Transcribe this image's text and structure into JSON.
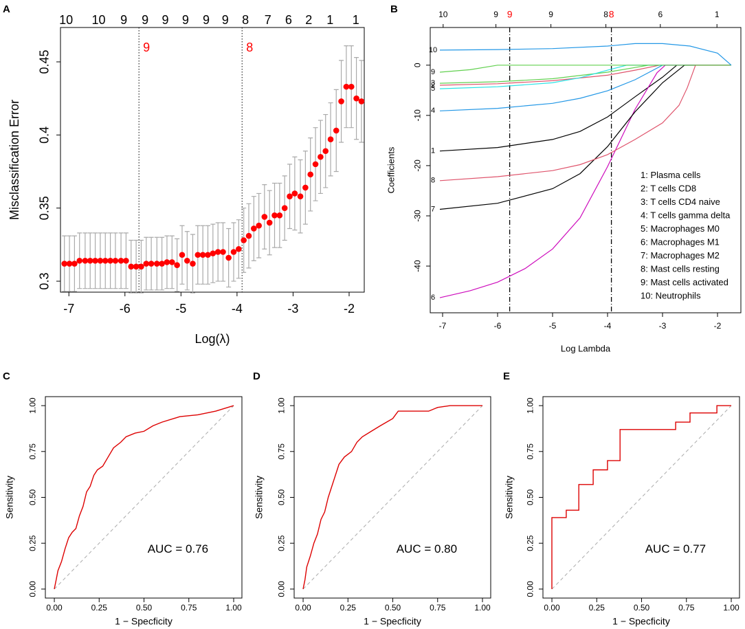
{
  "chart_data": [
    {
      "type": "scatter",
      "panel": "A",
      "xlabel": "Log(λ)",
      "ylabel": "Misclassification Error",
      "color": "#ff0000",
      "error_color": "#aaaaaa",
      "xlim": [
        -7.15,
        -1.73
      ],
      "ylim": [
        0.2925,
        0.4735
      ],
      "xticks": [
        -7,
        -6,
        -5,
        -4,
        -3,
        -2
      ],
      "yticks": [
        0.3,
        0.35,
        0.4,
        0.45
      ],
      "top_ticks": [
        {
          "value": -7.05,
          "label": "10"
        },
        {
          "value": -6.47,
          "label": "10"
        },
        {
          "value": -6.02,
          "label": "9"
        },
        {
          "value": -5.64,
          "label": "9"
        },
        {
          "value": -5.28,
          "label": "9"
        },
        {
          "value": -4.92,
          "label": "9"
        },
        {
          "value": -4.55,
          "label": "9"
        },
        {
          "value": -4.21,
          "label": "9"
        },
        {
          "value": -3.85,
          "label": "8"
        },
        {
          "value": -3.45,
          "label": "7"
        },
        {
          "value": -3.08,
          "label": "6"
        },
        {
          "value": -2.72,
          "label": "2"
        },
        {
          "value": -2.34,
          "label": "1"
        },
        {
          "value": -1.88,
          "label": "1"
        }
      ],
      "vlines": [
        {
          "x": -5.75,
          "label": "9"
        },
        {
          "x": -3.91,
          "label": "8"
        }
      ],
      "x": [
        -7.08,
        -6.99,
        -6.9,
        -6.81,
        -6.71,
        -6.62,
        -6.53,
        -6.44,
        -6.35,
        -6.26,
        -6.17,
        -6.07,
        -5.98,
        -5.89,
        -5.8,
        -5.71,
        -5.62,
        -5.53,
        -5.43,
        -5.34,
        -5.25,
        -5.16,
        -5.07,
        -4.98,
        -4.89,
        -4.79,
        -4.7,
        -4.61,
        -4.52,
        -4.43,
        -4.34,
        -4.25,
        -4.15,
        -4.06,
        -3.97,
        -3.88,
        -3.79,
        -3.7,
        -3.61,
        -3.51,
        -3.42,
        -3.33,
        -3.24,
        -3.15,
        -3.06,
        -2.97,
        -2.87,
        -2.78,
        -2.69,
        -2.6,
        -2.51,
        -2.42,
        -2.33,
        -2.23,
        -2.14,
        -2.05,
        -1.96,
        -1.87,
        -1.78
      ],
      "values": [
        0.312,
        0.312,
        0.312,
        0.314,
        0.314,
        0.314,
        0.314,
        0.314,
        0.314,
        0.314,
        0.314,
        0.314,
        0.314,
        0.31,
        0.31,
        0.31,
        0.312,
        0.312,
        0.312,
        0.312,
        0.313,
        0.313,
        0.311,
        0.318,
        0.314,
        0.312,
        0.318,
        0.318,
        0.318,
        0.319,
        0.32,
        0.32,
        0.316,
        0.32,
        0.322,
        0.328,
        0.331,
        0.336,
        0.338,
        0.344,
        0.34,
        0.345,
        0.345,
        0.35,
        0.358,
        0.36,
        0.358,
        0.364,
        0.373,
        0.38,
        0.385,
        0.389,
        0.397,
        0.403,
        0.423,
        0.433,
        0.433,
        0.425,
        0.423
      ],
      "errors": [
        0.019,
        0.019,
        0.019,
        0.019,
        0.019,
        0.019,
        0.019,
        0.019,
        0.019,
        0.019,
        0.019,
        0.019,
        0.019,
        0.018,
        0.018,
        0.018,
        0.018,
        0.018,
        0.018,
        0.018,
        0.018,
        0.018,
        0.018,
        0.02,
        0.02,
        0.02,
        0.02,
        0.02,
        0.02,
        0.02,
        0.02,
        0.02,
        0.02,
        0.02,
        0.02,
        0.022,
        0.022,
        0.022,
        0.022,
        0.022,
        0.022,
        0.022,
        0.022,
        0.022,
        0.022,
        0.025,
        0.025,
        0.025,
        0.025,
        0.025,
        0.025,
        0.025,
        0.025,
        0.028,
        0.028,
        0.028,
        0.028,
        0.028,
        0.028
      ]
    },
    {
      "type": "line",
      "panel": "B",
      "xlabel": "Log Lambda",
      "ylabel": "Coefficients",
      "xlim": [
        -7.225,
        -1.575
      ],
      "ylim": [
        -49.3,
        7.5
      ],
      "xticks": [
        -7,
        -6,
        -5,
        -4,
        -3,
        -2
      ],
      "yticks": [
        -40,
        -30,
        -20,
        -10,
        0
      ],
      "top_ticks": [
        {
          "value": -6.99,
          "label": "10"
        },
        {
          "value": -6.03,
          "label": "9"
        },
        {
          "value": -5.03,
          "label": "9"
        },
        {
          "value": -4.03,
          "label": "8"
        },
        {
          "value": -3.04,
          "label": "6"
        },
        {
          "value": -2.01,
          "label": "1"
        }
      ],
      "vlines": [
        {
          "x": -5.78,
          "label": "9"
        },
        {
          "x": -3.93,
          "label": "8"
        }
      ],
      "legend_position": "bottom-right",
      "series": [
        {
          "id": 1,
          "name": "1: Plasma cells",
          "color": "#000000",
          "x": [
            -7.05,
            -6,
            -5,
            -4.5,
            -4,
            -3.5,
            -3,
            -2.74,
            -1.75
          ],
          "y": [
            -17.1,
            -16.4,
            -14.8,
            -13.2,
            -10.3,
            -6.3,
            -2.4,
            0,
            0
          ]
        },
        {
          "id": 2,
          "name": "2: T cells CD8",
          "color": "#df536b",
          "x": [
            -7.05,
            -6,
            -5,
            -4,
            -3.5,
            -3.05,
            -1.75
          ],
          "y": [
            -4.0,
            -3.7,
            -3.1,
            -2.0,
            -1.0,
            0,
            0
          ]
        },
        {
          "id": 3,
          "name": "3: T cells CD4 naive",
          "color": "#61d04f",
          "x": [
            -7.05,
            -6,
            -5,
            -4,
            -3.25,
            -1.75
          ],
          "y": [
            -3.6,
            -3.3,
            -2.7,
            -1.4,
            0,
            0
          ]
        },
        {
          "id": 4,
          "name": "4: T cells gamma delta",
          "color": "#2297e6",
          "x": [
            -7.05,
            -6,
            -5,
            -4.5,
            -4,
            -3.5,
            -3.0,
            -1.75
          ],
          "y": [
            -9.1,
            -8.6,
            -7.6,
            -6.6,
            -5.1,
            -2.9,
            0,
            0
          ]
        },
        {
          "id": 5,
          "name": "5: Macrophages M0",
          "color": "#28e2e5",
          "x": [
            -7.05,
            -6,
            -5,
            -4.5,
            -4,
            -3.65,
            -1.75
          ],
          "y": [
            -4.7,
            -4.3,
            -3.5,
            -2.5,
            -1.0,
            0,
            0
          ]
        },
        {
          "id": 6,
          "name": "6: Macrophages M1",
          "color": "#cd0bbc",
          "x": [
            -7.05,
            -6.5,
            -6,
            -5.5,
            -5,
            -4.5,
            -4,
            -3.5,
            -3.1,
            -2.95,
            -1.75
          ],
          "y": [
            -46.3,
            -44.9,
            -43.2,
            -40.5,
            -36.6,
            -30.4,
            -20.2,
            -8.8,
            -1.5,
            0,
            0
          ]
        },
        {
          "id": 7,
          "name": "7: Macrophages M2",
          "color": "#000000",
          "x": [
            -7.05,
            -6,
            -5,
            -4.5,
            -4,
            -3.5,
            -3,
            -2.6,
            -1.75
          ],
          "y": [
            -28.7,
            -27.5,
            -24.6,
            -21.6,
            -16.2,
            -9.3,
            -3.5,
            0,
            0
          ]
        },
        {
          "id": 8,
          "name": "8: Mast cells resting",
          "color": "#df536b",
          "x": [
            -7.05,
            -6,
            -5,
            -4.5,
            -4,
            -3.5,
            -3,
            -2.7,
            -2.55,
            -2.4,
            -1.75
          ],
          "y": [
            -23.0,
            -22.2,
            -21.0,
            -19.8,
            -17.8,
            -14.8,
            -11.5,
            -8,
            -4.5,
            0,
            0
          ]
        },
        {
          "id": 9,
          "name": "9: Mast cells activated",
          "color": "#61d04f",
          "x": [
            -7.05,
            -6.5,
            -6.0,
            -1.75
          ],
          "y": [
            -1.4,
            -0.9,
            0,
            0
          ]
        },
        {
          "id": 10,
          "name": "10: Neutrophils",
          "color": "#2297e6",
          "x": [
            -7.05,
            -6,
            -5,
            -4,
            -3.5,
            -3,
            -2.5,
            -2,
            -1.75
          ],
          "y": [
            3.0,
            3.1,
            3.3,
            3.8,
            4.3,
            4.3,
            3.8,
            2.4,
            0
          ]
        }
      ]
    },
    {
      "type": "roc",
      "panel": "C",
      "xlabel": "1 − Specficity",
      "ylabel": "Sensitivity",
      "annotation": "AUC = 0.76",
      "color": "#dd0000",
      "reference_line": true,
      "xlim": [
        -0.05,
        1.046
      ],
      "ylim": [
        -0.049,
        1.049
      ],
      "xticks": [
        {
          "value": 0,
          "label": "0.00"
        },
        {
          "value": 0.25,
          "label": "0.25"
        },
        {
          "value": 0.5,
          "label": "0.50"
        },
        {
          "value": 0.75,
          "label": "0.75"
        },
        {
          "value": 1,
          "label": "1.00"
        }
      ],
      "yticks": [
        {
          "value": 0,
          "label": "0.00"
        },
        {
          "value": 0.25,
          "label": "0.25"
        },
        {
          "value": 0.5,
          "label": "0.50"
        },
        {
          "value": 0.75,
          "label": "0.75"
        },
        {
          "value": 1,
          "label": "1.00"
        }
      ],
      "x": [
        0,
        0.01,
        0.02,
        0.04,
        0.06,
        0.08,
        0.1,
        0.12,
        0.14,
        0.16,
        0.18,
        0.2,
        0.22,
        0.24,
        0.27,
        0.3,
        0.33,
        0.37,
        0.4,
        0.45,
        0.5,
        0.55,
        0.6,
        0.7,
        0.8,
        0.9,
        1
      ],
      "y": [
        0,
        0.05,
        0.1,
        0.15,
        0.22,
        0.28,
        0.31,
        0.33,
        0.4,
        0.45,
        0.53,
        0.56,
        0.62,
        0.65,
        0.67,
        0.72,
        0.77,
        0.8,
        0.83,
        0.85,
        0.86,
        0.89,
        0.91,
        0.94,
        0.95,
        0.97,
        1
      ]
    },
    {
      "type": "roc",
      "panel": "D",
      "xlabel": "1 − Specficity",
      "ylabel": "Sensitivity",
      "annotation": "AUC = 0.80",
      "color": "#dd0000",
      "reference_line": true,
      "xlim": [
        -0.05,
        1.046
      ],
      "ylim": [
        -0.049,
        1.049
      ],
      "xticks": [
        {
          "value": 0,
          "label": "0.00"
        },
        {
          "value": 0.25,
          "label": "0.25"
        },
        {
          "value": 0.5,
          "label": "0.50"
        },
        {
          "value": 0.75,
          "label": "0.75"
        },
        {
          "value": 1,
          "label": "1.00"
        }
      ],
      "yticks": [
        {
          "value": 0,
          "label": "0.00"
        },
        {
          "value": 0.25,
          "label": "0.25"
        },
        {
          "value": 0.5,
          "label": "0.50"
        },
        {
          "value": 0.75,
          "label": "0.75"
        },
        {
          "value": 1,
          "label": "1.00"
        }
      ],
      "x": [
        0,
        0.01,
        0.02,
        0.04,
        0.06,
        0.08,
        0.1,
        0.12,
        0.14,
        0.16,
        0.18,
        0.2,
        0.23,
        0.27,
        0.3,
        0.33,
        0.38,
        0.43,
        0.5,
        0.53,
        0.7,
        0.75,
        0.82,
        1
      ],
      "y": [
        0,
        0.05,
        0.12,
        0.18,
        0.25,
        0.3,
        0.38,
        0.42,
        0.5,
        0.56,
        0.62,
        0.68,
        0.72,
        0.75,
        0.8,
        0.83,
        0.86,
        0.89,
        0.93,
        0.97,
        0.97,
        0.99,
        1,
        1
      ]
    },
    {
      "type": "roc",
      "panel": "E",
      "xlabel": "1 − Specficity",
      "ylabel": "Sensitivity",
      "annotation": "AUC = 0.77",
      "color": "#dd0000",
      "reference_line": true,
      "xlim": [
        -0.05,
        1.046
      ],
      "ylim": [
        -0.049,
        1.049
      ],
      "xticks": [
        {
          "value": 0,
          "label": "0.00"
        },
        {
          "value": 0.25,
          "label": "0.25"
        },
        {
          "value": 0.5,
          "label": "0.50"
        },
        {
          "value": 0.75,
          "label": "0.75"
        },
        {
          "value": 1,
          "label": "1.00"
        }
      ],
      "yticks": [
        {
          "value": 0,
          "label": "0.00"
        },
        {
          "value": 0.25,
          "label": "0.25"
        },
        {
          "value": 0.5,
          "label": "0.50"
        },
        {
          "value": 0.75,
          "label": "0.75"
        },
        {
          "value": 1,
          "label": "1.00"
        }
      ],
      "x": [
        0,
        0,
        0.08,
        0.08,
        0.15,
        0.15,
        0.23,
        0.23,
        0.31,
        0.31,
        0.38,
        0.38,
        0.69,
        0.69,
        0.77,
        0.77,
        0.92,
        0.92,
        1
      ],
      "y": [
        0,
        0.39,
        0.39,
        0.43,
        0.43,
        0.57,
        0.57,
        0.65,
        0.65,
        0.7,
        0.7,
        0.87,
        0.87,
        0.91,
        0.91,
        0.96,
        0.96,
        1,
        1
      ]
    }
  ]
}
